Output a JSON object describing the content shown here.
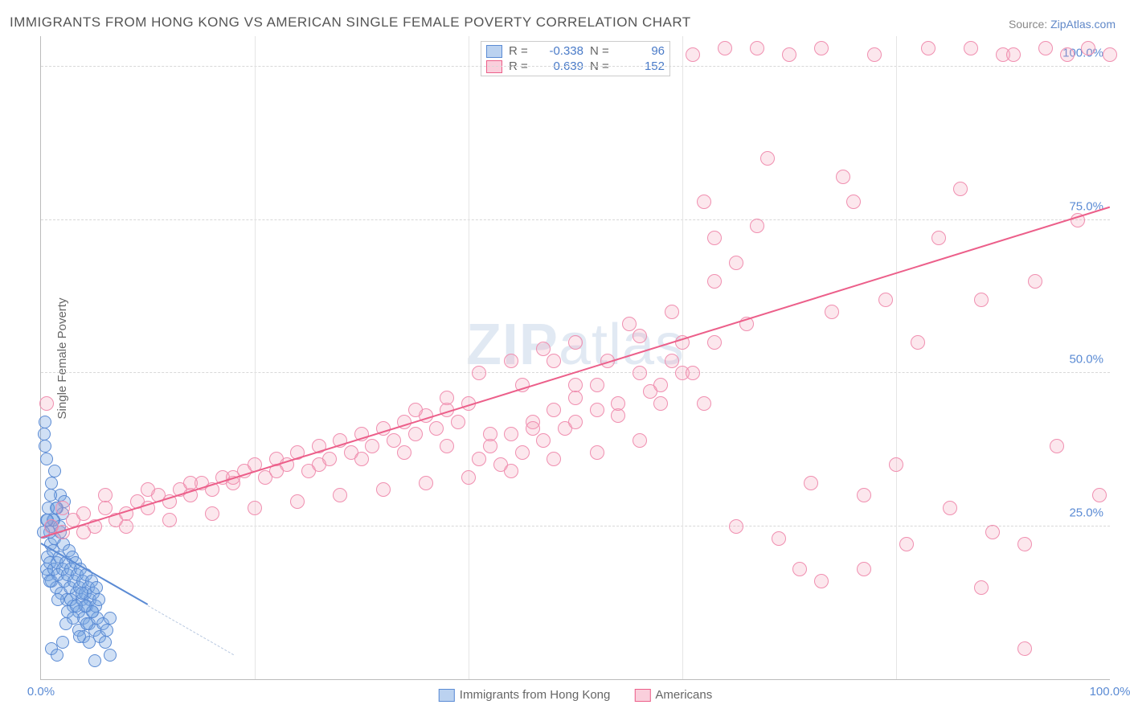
{
  "title": "IMMIGRANTS FROM HONG KONG VS AMERICAN SINGLE FEMALE POVERTY CORRELATION CHART",
  "source_label": "Source:",
  "source_value": "ZipAtlas.com",
  "ylabel": "Single Female Poverty",
  "watermark": "ZIPatlas",
  "chart": {
    "type": "scatter",
    "xlim": [
      0,
      100
    ],
    "ylim": [
      0,
      105
    ],
    "xticks": [
      0,
      100
    ],
    "xtick_labels": [
      "0.0%",
      "100.0%"
    ],
    "xtick_minor": [
      20,
      40,
      60,
      80
    ],
    "yticks": [
      25,
      50,
      75,
      100
    ],
    "ytick_labels": [
      "25.0%",
      "50.0%",
      "75.0%",
      "100.0%"
    ],
    "grid_color": "#d8d8d8",
    "background_color": "#ffffff",
    "axis_color": "#bbbbbb",
    "series": [
      {
        "name": "Immigrants from Hong Kong",
        "color_fill": "rgba(120,165,225,0.35)",
        "color_stroke": "#5b8bd4",
        "marker_size": 14,
        "r": -0.338,
        "n": 96,
        "trend": {
          "x1": 0,
          "y1": 22,
          "x2": 10,
          "y2": 12,
          "dash_ext_x": 18,
          "dash_ext_y": 4
        },
        "points": [
          [
            0.5,
            18
          ],
          [
            0.6,
            20
          ],
          [
            0.7,
            17
          ],
          [
            0.8,
            19
          ],
          [
            0.9,
            22
          ],
          [
            1.0,
            16
          ],
          [
            1.1,
            21
          ],
          [
            1.2,
            18
          ],
          [
            1.3,
            23
          ],
          [
            1.4,
            15
          ],
          [
            1.5,
            19
          ],
          [
            1.6,
            17
          ],
          [
            1.7,
            20
          ],
          [
            1.8,
            24
          ],
          [
            1.9,
            14
          ],
          [
            2.0,
            18
          ],
          [
            2.1,
            22
          ],
          [
            2.2,
            16
          ],
          [
            2.3,
            19
          ],
          [
            2.4,
            13
          ],
          [
            2.5,
            17
          ],
          [
            2.6,
            21
          ],
          [
            2.7,
            15
          ],
          [
            2.8,
            18
          ],
          [
            2.9,
            20
          ],
          [
            3.0,
            12
          ],
          [
            3.1,
            16
          ],
          [
            3.2,
            19
          ],
          [
            3.3,
            14
          ],
          [
            3.4,
            17
          ],
          [
            3.5,
            11
          ],
          [
            3.6,
            15
          ],
          [
            3.7,
            18
          ],
          [
            3.8,
            13
          ],
          [
            3.9,
            16
          ],
          [
            4.0,
            10
          ],
          [
            4.1,
            14
          ],
          [
            4.2,
            17
          ],
          [
            4.3,
            12
          ],
          [
            4.4,
            15
          ],
          [
            4.5,
            9
          ],
          [
            4.6,
            13
          ],
          [
            4.7,
            16
          ],
          [
            4.8,
            11
          ],
          [
            4.9,
            14
          ],
          [
            5.0,
            8
          ],
          [
            5.1,
            12
          ],
          [
            5.2,
            15
          ],
          [
            5.3,
            10
          ],
          [
            5.4,
            13
          ],
          [
            1.0,
            25
          ],
          [
            1.2,
            26
          ],
          [
            1.5,
            28
          ],
          [
            1.8,
            30
          ],
          [
            2.0,
            27
          ],
          [
            2.2,
            29
          ],
          [
            0.8,
            24
          ],
          [
            1.1,
            26
          ],
          [
            1.4,
            28
          ],
          [
            1.7,
            25
          ],
          [
            5.5,
            7
          ],
          [
            5.8,
            9
          ],
          [
            6.0,
            6
          ],
          [
            6.2,
            8
          ],
          [
            6.5,
            10
          ],
          [
            1.0,
            32
          ],
          [
            1.3,
            34
          ],
          [
            0.5,
            26
          ],
          [
            0.7,
            28
          ],
          [
            0.9,
            30
          ],
          [
            2.5,
            11
          ],
          [
            2.8,
            13
          ],
          [
            3.0,
            10
          ],
          [
            3.3,
            12
          ],
          [
            3.5,
            8
          ],
          [
            3.8,
            14
          ],
          [
            4.0,
            7
          ],
          [
            4.3,
            9
          ],
          [
            4.5,
            6
          ],
          [
            4.8,
            11
          ],
          [
            0.3,
            40
          ],
          [
            0.4,
            38
          ],
          [
            0.5,
            36
          ],
          [
            0.2,
            24
          ],
          [
            0.6,
            26
          ],
          [
            1.0,
            5
          ],
          [
            1.5,
            4
          ],
          [
            2.0,
            6
          ],
          [
            5.0,
            3
          ],
          [
            6.5,
            4
          ],
          [
            0.4,
            42
          ],
          [
            0.8,
            16
          ],
          [
            1.6,
            13
          ],
          [
            2.3,
            9
          ],
          [
            3.6,
            7
          ],
          [
            4.1,
            12
          ]
        ]
      },
      {
        "name": "Americans",
        "color_fill": "rgba(245,160,185,0.25)",
        "color_stroke": "#f08fb0",
        "marker_size": 16,
        "r": 0.639,
        "n": 152,
        "trend": {
          "x1": 0,
          "y1": 23,
          "x2": 100,
          "y2": 77
        },
        "points": [
          [
            1,
            25
          ],
          [
            2,
            24
          ],
          [
            3,
            26
          ],
          [
            4,
            27
          ],
          [
            5,
            25
          ],
          [
            6,
            28
          ],
          [
            7,
            26
          ],
          [
            8,
            27
          ],
          [
            9,
            29
          ],
          [
            10,
            28
          ],
          [
            11,
            30
          ],
          [
            12,
            29
          ],
          [
            13,
            31
          ],
          [
            14,
            30
          ],
          [
            15,
            32
          ],
          [
            16,
            31
          ],
          [
            17,
            33
          ],
          [
            18,
            32
          ],
          [
            19,
            34
          ],
          [
            20,
            35
          ],
          [
            21,
            33
          ],
          [
            22,
            36
          ],
          [
            23,
            35
          ],
          [
            24,
            37
          ],
          [
            25,
            34
          ],
          [
            26,
            38
          ],
          [
            27,
            36
          ],
          [
            28,
            39
          ],
          [
            29,
            37
          ],
          [
            30,
            40
          ],
          [
            31,
            38
          ],
          [
            32,
            41
          ],
          [
            33,
            39
          ],
          [
            34,
            42
          ],
          [
            35,
            40
          ],
          [
            36,
            43
          ],
          [
            37,
            41
          ],
          [
            38,
            44
          ],
          [
            39,
            42
          ],
          [
            40,
            45
          ],
          [
            41,
            36
          ],
          [
            42,
            38
          ],
          [
            43,
            35
          ],
          [
            44,
            40
          ],
          [
            45,
            37
          ],
          [
            46,
            42
          ],
          [
            47,
            39
          ],
          [
            48,
            44
          ],
          [
            49,
            41
          ],
          [
            50,
            46
          ],
          [
            52,
            48
          ],
          [
            54,
            43
          ],
          [
            56,
            50
          ],
          [
            58,
            45
          ],
          [
            60,
            55
          ],
          [
            61,
            102
          ],
          [
            62,
            78
          ],
          [
            63,
            65
          ],
          [
            64,
            103
          ],
          [
            65,
            25
          ],
          [
            66,
            58
          ],
          [
            67,
            103
          ],
          [
            68,
            85
          ],
          [
            69,
            23
          ],
          [
            70,
            102
          ],
          [
            71,
            18
          ],
          [
            72,
            32
          ],
          [
            73,
            103
          ],
          [
            74,
            60
          ],
          [
            75,
            82
          ],
          [
            76,
            78
          ],
          [
            77,
            30
          ],
          [
            78,
            102
          ],
          [
            79,
            62
          ],
          [
            80,
            35
          ],
          [
            81,
            22
          ],
          [
            82,
            55
          ],
          [
            83,
            103
          ],
          [
            84,
            72
          ],
          [
            85,
            28
          ],
          [
            86,
            80
          ],
          [
            87,
            103
          ],
          [
            88,
            62
          ],
          [
            89,
            24
          ],
          [
            90,
            102
          ],
          [
            91,
            102
          ],
          [
            92,
            5
          ],
          [
            93,
            65
          ],
          [
            94,
            103
          ],
          [
            95,
            38
          ],
          [
            96,
            102
          ],
          [
            97,
            75
          ],
          [
            98,
            103
          ],
          [
            99,
            30
          ],
          [
            100,
            102
          ],
          [
            2,
            28
          ],
          [
            4,
            24
          ],
          [
            6,
            30
          ],
          [
            8,
            25
          ],
          [
            10,
            31
          ],
          [
            12,
            26
          ],
          [
            14,
            32
          ],
          [
            16,
            27
          ],
          [
            18,
            33
          ],
          [
            20,
            28
          ],
          [
            22,
            34
          ],
          [
            24,
            29
          ],
          [
            26,
            35
          ],
          [
            28,
            30
          ],
          [
            30,
            36
          ],
          [
            32,
            31
          ],
          [
            34,
            37
          ],
          [
            36,
            32
          ],
          [
            38,
            38
          ],
          [
            40,
            33
          ],
          [
            42,
            40
          ],
          [
            44,
            34
          ],
          [
            46,
            41
          ],
          [
            48,
            36
          ],
          [
            50,
            42
          ],
          [
            52,
            37
          ],
          [
            54,
            45
          ],
          [
            56,
            39
          ],
          [
            58,
            48
          ],
          [
            60,
            50
          ],
          [
            45,
            48
          ],
          [
            48,
            52
          ],
          [
            50,
            55
          ],
          [
            52,
            44
          ],
          [
            55,
            58
          ],
          [
            57,
            47
          ],
          [
            59,
            60
          ],
          [
            61,
            50
          ],
          [
            63,
            55
          ],
          [
            65,
            68
          ],
          [
            88,
            15
          ],
          [
            73,
            16
          ],
          [
            77,
            18
          ],
          [
            92,
            22
          ],
          [
            63,
            72
          ],
          [
            67,
            74
          ],
          [
            35,
            44
          ],
          [
            38,
            46
          ],
          [
            41,
            50
          ],
          [
            44,
            52
          ],
          [
            47,
            54
          ],
          [
            50,
            48
          ],
          [
            53,
            52
          ],
          [
            56,
            56
          ],
          [
            59,
            52
          ],
          [
            62,
            45
          ],
          [
            0.5,
            45
          ]
        ]
      }
    ],
    "legend_bottom": [
      {
        "swatch": "blue",
        "label": "Immigrants from Hong Kong"
      },
      {
        "swatch": "pink",
        "label": "Americans"
      }
    ]
  }
}
